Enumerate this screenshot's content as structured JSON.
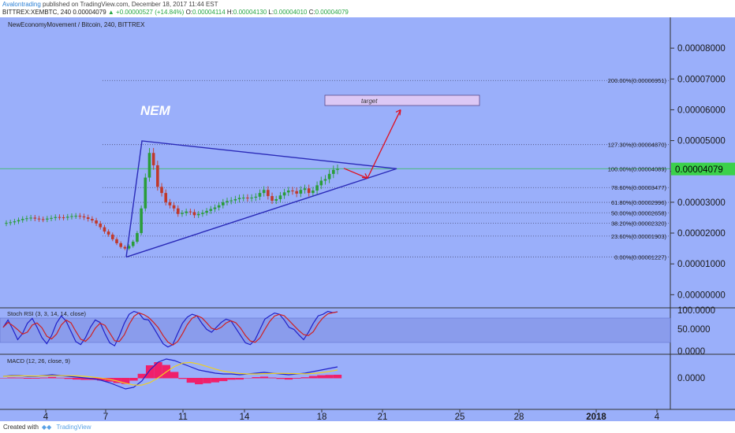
{
  "header": {
    "author": "Avalontrading",
    "published": "published on TradingView.com, December 18, 2017 11:44 EST",
    "symbol": "BITTREX:XEMBTC, 240",
    "last": "0.00004079",
    "change": "+0.00000527 (+14.84%)",
    "open_label": "O:",
    "open": "0.00004114",
    "high_label": "H:",
    "high": "0.00004130",
    "low_label": "L:",
    "low": "0.00004010",
    "close_label": "C:",
    "close": "0.00004079"
  },
  "footer": {
    "created_with": "Created with",
    "brand": "TradingView"
  },
  "colors": {
    "background": "#9aaffa",
    "up": "#2a9d3a",
    "down": "#c0392b",
    "triangle": "#2a2ab8",
    "arrow": "#e01020",
    "target_box": "#dcc8f5"
  },
  "chart_data": {
    "type": "candlestick",
    "title": "NewEconomyMovement / Bitcoin, 240, BITTREX",
    "annotation": "NEM",
    "target_label": "target",
    "last_price_label": "0.00004079",
    "ylim": [
      -4e-06,
      9e-05
    ],
    "y_ticks": [
      "0.00008000",
      "0.00007000",
      "0.00006000",
      "0.00005000",
      "0.00004000",
      "0.00003000",
      "0.00002000",
      "0.00001000",
      "0.00000000"
    ],
    "y_tick_values": [
      8e-05,
      7e-05,
      6e-05,
      5e-05,
      4e-05,
      3e-05,
      2e-05,
      1e-05,
      0
    ],
    "x_ticks": [
      "4",
      "7",
      "11",
      "14",
      "18",
      "21",
      "25",
      "28",
      "2018",
      "4"
    ],
    "fib_levels": [
      {
        "label": "200.00%(0.00006951)",
        "value": 6.951e-05
      },
      {
        "label": "127.30%(0.00004870)",
        "value": 4.87e-05
      },
      {
        "label": "100.00%(0.00004089)",
        "value": 4.089e-05
      },
      {
        "label": "78.60%(0.00003477)",
        "value": 3.477e-05
      },
      {
        "label": "61.80%(0.00002996)",
        "value": 2.996e-05
      },
      {
        "label": "50.00%(0.00002658)",
        "value": 2.658e-05
      },
      {
        "label": "38.20%(0.00002320)",
        "value": 2.32e-05
      },
      {
        "label": "23.60%(0.00001903)",
        "value": 1.903e-05
      },
      {
        "label": "0.00%(0.00001227)",
        "value": 1.227e-05
      }
    ],
    "stoch_label": "Stoch RSI (3, 3, 14, 14, close)",
    "stoch_ticks": [
      "100.0000",
      "50.0000",
      "0.0000"
    ],
    "macd_label": "MACD (12, 26, close, 9)",
    "macd_ticks": [
      "0.0000"
    ],
    "price_path": [
      2.33e-05,
      2.35e-05,
      2.38e-05,
      2.42e-05,
      2.46e-05,
      2.48e-05,
      2.5e-05,
      2.47e-05,
      2.45e-05,
      2.44e-05,
      2.47e-05,
      2.49e-05,
      2.52e-05,
      2.51e-05,
      2.5e-05,
      2.53e-05,
      2.55e-05,
      2.56e-05,
      2.54e-05,
      2.51e-05,
      2.46e-05,
      2.41e-05,
      2.31e-05,
      2.19e-05,
      2.05e-05,
      1.95e-05,
      1.8e-05,
      1.67e-05,
      1.55e-05,
      1.5e-05,
      1.58e-05,
      1.72e-05,
      2e-05,
      2.8e-05,
      3.8e-05,
      4.6e-05,
      4.2e-05,
      3.5e-05,
      3.3e-05,
      3e-05,
      2.9e-05,
      2.8e-05,
      2.62e-05,
      2.65e-05,
      2.7e-05,
      2.68e-05,
      2.58e-05,
      2.62e-05,
      2.66e-05,
      2.72e-05,
      2.78e-05,
      2.83e-05,
      2.9e-05,
      3e-05,
      3.04e-05,
      3.06e-05,
      3.1e-05,
      3.14e-05,
      3.15e-05,
      3.13e-05,
      3.15e-05,
      3.18e-05,
      3.3e-05,
      3.4e-05,
      3.2e-05,
      3.05e-05,
      3.1e-05,
      3.22e-05,
      3.32e-05,
      3.38e-05,
      3.36e-05,
      3.28e-05,
      3.4e-05,
      3.45e-05,
      3.3e-05,
      3.38e-05,
      3.55e-05,
      3.7e-05,
      3.75e-05,
      3.92e-05,
      4.05e-05,
      4.08e-05
    ]
  }
}
